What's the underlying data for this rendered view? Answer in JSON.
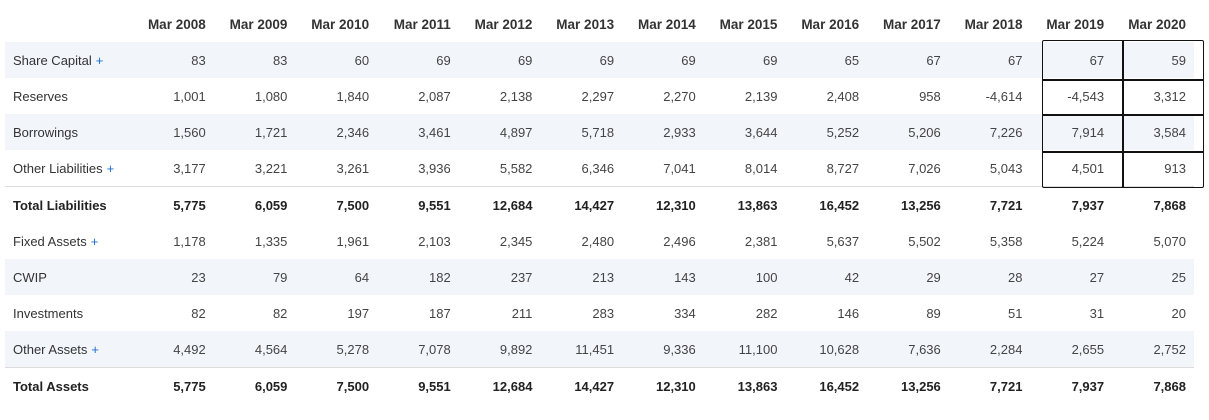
{
  "columns": [
    "Mar 2008",
    "Mar 2009",
    "Mar 2010",
    "Mar 2011",
    "Mar 2012",
    "Mar 2013",
    "Mar 2014",
    "Mar 2015",
    "Mar 2016",
    "Mar 2017",
    "Mar 2018",
    "Mar 2019",
    "Mar 2020"
  ],
  "expand_symbol": "+",
  "rows": [
    {
      "label": "Share Capital",
      "expandable": true,
      "total": false,
      "values": [
        "83",
        "83",
        "60",
        "69",
        "69",
        "69",
        "69",
        "69",
        "65",
        "67",
        "67",
        "67",
        "59"
      ]
    },
    {
      "label": "Reserves",
      "expandable": false,
      "total": false,
      "values": [
        "1,001",
        "1,080",
        "1,840",
        "2,087",
        "2,138",
        "2,297",
        "2,270",
        "2,139",
        "2,408",
        "958",
        "-4,614",
        "-4,543",
        "3,312"
      ]
    },
    {
      "label": "Borrowings",
      "expandable": false,
      "total": false,
      "values": [
        "1,560",
        "1,721",
        "2,346",
        "3,461",
        "4,897",
        "5,718",
        "2,933",
        "3,644",
        "5,252",
        "5,206",
        "7,226",
        "7,914",
        "3,584"
      ]
    },
    {
      "label": "Other Liabilities",
      "expandable": true,
      "total": false,
      "values": [
        "3,177",
        "3,221",
        "3,261",
        "3,936",
        "5,582",
        "6,346",
        "7,041",
        "8,014",
        "8,727",
        "7,026",
        "5,043",
        "4,501",
        "913"
      ]
    },
    {
      "label": "Total Liabilities",
      "expandable": false,
      "total": true,
      "values": [
        "5,775",
        "6,059",
        "7,500",
        "9,551",
        "12,684",
        "14,427",
        "12,310",
        "13,863",
        "16,452",
        "13,256",
        "7,721",
        "7,937",
        "7,868"
      ]
    },
    {
      "label": "Fixed Assets",
      "expandable": true,
      "total": false,
      "values": [
        "1,178",
        "1,335",
        "1,961",
        "2,103",
        "2,345",
        "2,480",
        "2,496",
        "2,381",
        "5,637",
        "5,502",
        "5,358",
        "5,224",
        "5,070"
      ]
    },
    {
      "label": "CWIP",
      "expandable": false,
      "total": false,
      "values": [
        "23",
        "79",
        "64",
        "182",
        "237",
        "213",
        "143",
        "100",
        "42",
        "29",
        "28",
        "27",
        "25"
      ]
    },
    {
      "label": "Investments",
      "expandable": false,
      "total": false,
      "values": [
        "82",
        "82",
        "197",
        "187",
        "211",
        "283",
        "334",
        "282",
        "146",
        "89",
        "51",
        "31",
        "20"
      ]
    },
    {
      "label": "Other Assets",
      "expandable": true,
      "total": false,
      "values": [
        "4,492",
        "4,564",
        "5,278",
        "7,078",
        "9,892",
        "11,451",
        "9,336",
        "11,100",
        "10,628",
        "7,636",
        "2,284",
        "2,655",
        "2,752"
      ]
    },
    {
      "label": "Total Assets",
      "expandable": false,
      "total": true,
      "values": [
        "5,775",
        "6,059",
        "7,500",
        "9,551",
        "12,684",
        "14,427",
        "12,310",
        "13,863",
        "16,452",
        "13,256",
        "7,721",
        "7,937",
        "7,868"
      ]
    }
  ]
}
